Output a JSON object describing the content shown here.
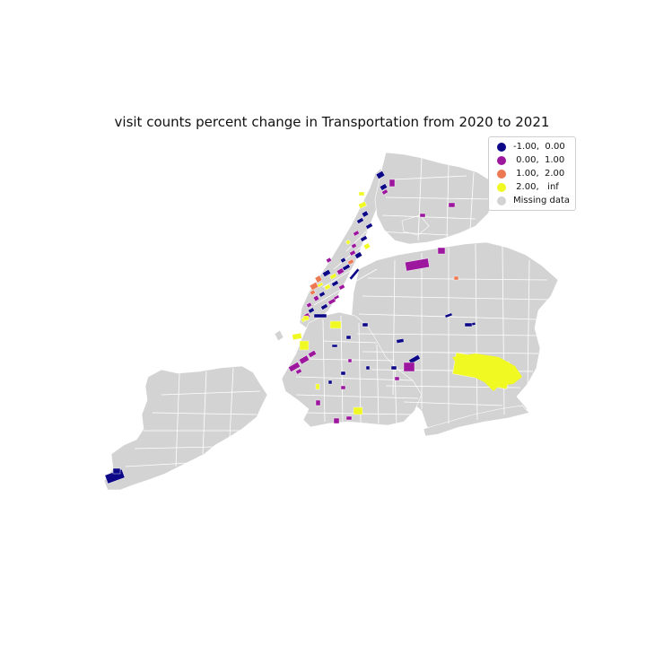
{
  "title": "visit counts percent change in Transportation from 2020 to 2021",
  "legend": [
    {
      "label": "-1.00,  0.00",
      "color": "#0d0887"
    },
    {
      "label": " 0.00,  1.00",
      "color": "#9c179e"
    },
    {
      "label": " 1.00,  2.00",
      "color": "#ed7953"
    },
    {
      "label": " 2.00,   inf",
      "color": "#f0f921"
    },
    {
      "label": "Missing data",
      "color": "#d3d3d3"
    }
  ],
  "colors": {
    "missing": "#d3d3d3",
    "boundary": "#ffffff",
    "background": "#ffffff"
  }
}
